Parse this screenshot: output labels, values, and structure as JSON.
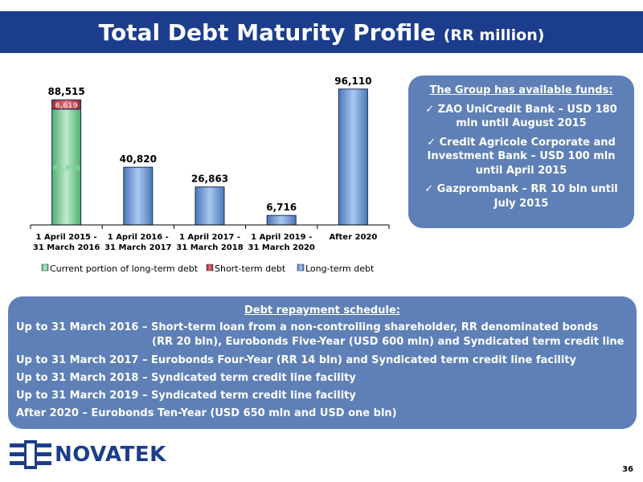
{
  "title": {
    "main": "Total Debt Maturity Profile",
    "unit": "(RR million)"
  },
  "chart_data": {
    "type": "bar",
    "stacked": true,
    "categories": [
      "1 April 2015 -\n31 March 2016",
      "1 April 2016 -\n31 March 2017",
      "1 April 2017 -\n31 March 2018",
      "1 April 2019 -\n31 March 2020",
      "After 2020"
    ],
    "series": [
      {
        "name": "Current portion of long-term debt",
        "values": [
          81896,
          0,
          0,
          0,
          0
        ],
        "color": "#7ed19a"
      },
      {
        "name": "Short-term debt",
        "values": [
          6619,
          0,
          0,
          0,
          0
        ],
        "color": "#c0404a"
      },
      {
        "name": "Long-term debt",
        "values": [
          0,
          40820,
          26863,
          6716,
          96110
        ],
        "color": "#6c9fd8"
      }
    ],
    "totals": [
      88515,
      40820,
      26863,
      6716,
      96110
    ],
    "total_labels": [
      "88,515",
      "40,820",
      "26,863",
      "6,716",
      "96,110"
    ],
    "segment_labels": [
      "81,896",
      "6,619"
    ],
    "ylim": [
      0,
      100000
    ],
    "legend_position": "bottom",
    "grid": false
  },
  "funds": {
    "heading": "The Group has available funds:",
    "items": [
      "ZAO UniCredit Bank – USD 180 mln until August 2015",
      "Credit Agricole Corporate and Investment Bank – USD 100 mln until April 2015",
      "Gazprombank – RR 10 bln until July 2015"
    ],
    "check_icon": "checkmark-icon"
  },
  "schedule": {
    "heading": "Debt repayment schedule:",
    "rows": [
      "Up to 31 March 2016 – Short-term loan from a non-controlling shareholder, RR denominated bonds",
      "(RR 20 bln), Eurobonds Five-Year (USD 600 mln) and Syndicated term credit line",
      "Up to 31 March 2017 – Eurobonds Four-Year (RR 14 bln) and Syndicated term credit line facility",
      "Up to 31 March 2018 – Syndicated term credit line facility",
      "Up to 31 March 2019 – Syndicated term credit line facility",
      "After 2020 – Eurobonds Ten-Year (USD 650 mln and USD one bln)"
    ]
  },
  "logo": {
    "text": "NOVATEK"
  },
  "page_number": "36",
  "colors": {
    "brand": "#1c3d8c",
    "box": "#5e80b6"
  }
}
